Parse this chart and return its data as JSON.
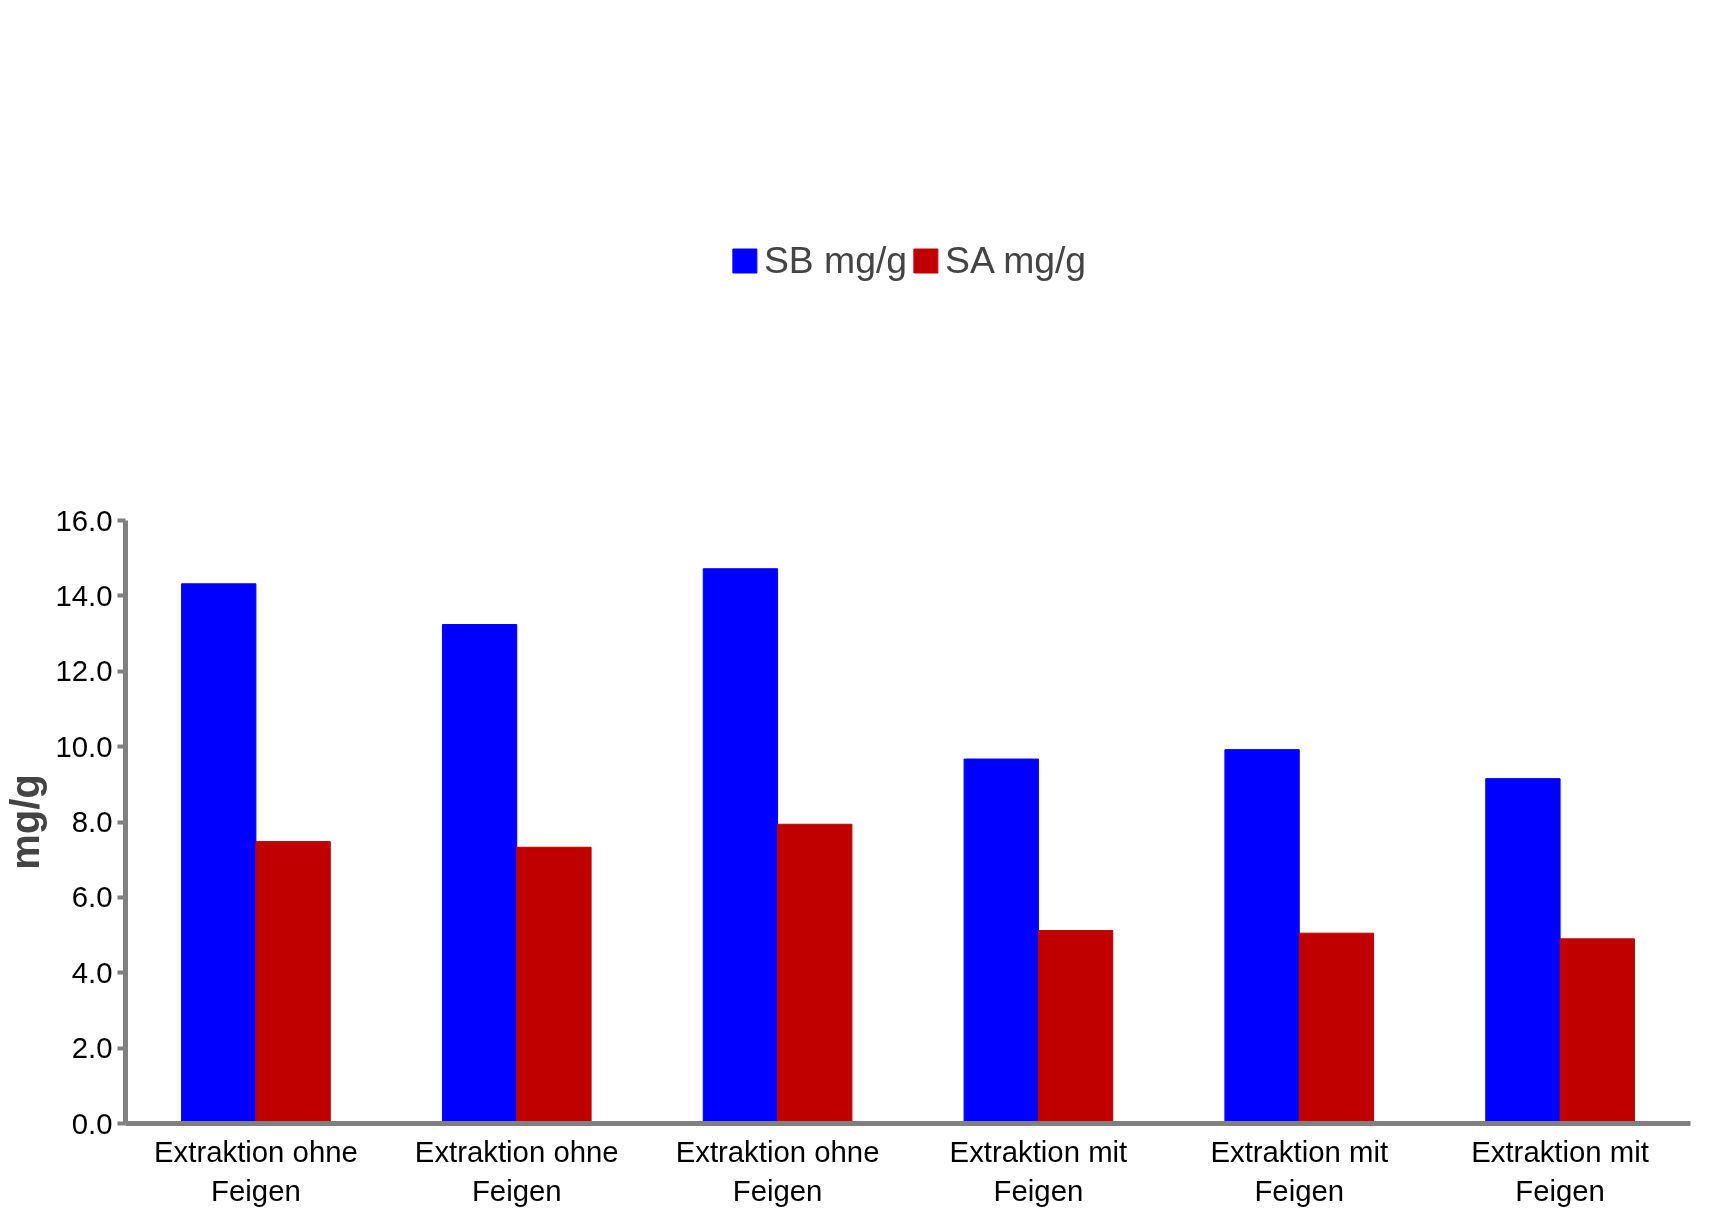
{
  "chart_data": {
    "type": "bar",
    "ylabel": "mg/g",
    "categories": [
      "Extraktion ohne Feigen",
      "Extraktion ohne Feigen",
      "Extraktion ohne Feigen",
      "Extraktion mit Feigen",
      "Extraktion mit Feigen",
      "Extraktion mit Feigen"
    ],
    "series": [
      {
        "name": "SB mg/g",
        "color": "#0000ff",
        "values": [
          14.32,
          13.24,
          14.72,
          9.67,
          9.92,
          9.15
        ]
      },
      {
        "name": "SA mg/g",
        "color": "#c00000",
        "values": [
          7.48,
          7.33,
          7.94,
          5.12,
          5.05,
          4.9
        ]
      }
    ],
    "ylim": [
      0,
      16
    ],
    "yticks": [
      {
        "value": 0,
        "label": "0.0"
      },
      {
        "value": 2,
        "label": "2.0"
      },
      {
        "value": 4,
        "label": "4.0"
      },
      {
        "value": 6,
        "label": "6.0"
      },
      {
        "value": 8,
        "label": "8.0"
      },
      {
        "value": 10,
        "label": "10.0"
      },
      {
        "value": 12,
        "label": "12.0"
      },
      {
        "value": 14,
        "label": "14.0"
      },
      {
        "value": 16,
        "label": "16.0"
      }
    ],
    "grid": false,
    "legend": "top"
  }
}
